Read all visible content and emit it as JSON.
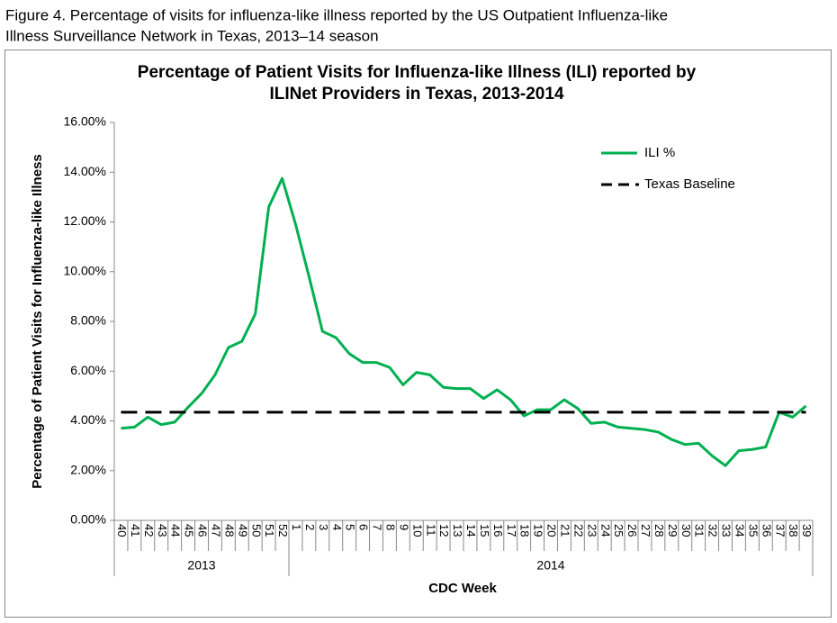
{
  "figure_caption": [
    "Figure 4.  Percentage of visits for influenza-like illness reported by the US Outpatient Influenza-like",
    "Illness Surveillance Network in Texas, 2013–14 season"
  ],
  "chart_data": {
    "type": "line",
    "title": [
      "Percentage of Patient Visits for Influenza-like Illness (ILI) reported by",
      "ILINet Providers in Texas, 2013-2014"
    ],
    "y_label": "Percentage  of Patient Visits for Influenza-like  Illness",
    "x_label": "CDC Week",
    "categories": [
      "40",
      "41",
      "42",
      "43",
      "44",
      "45",
      "46",
      "47",
      "48",
      "49",
      "50",
      "51",
      "52",
      "1",
      "2",
      "3",
      "4",
      "5",
      "6",
      "7",
      "8",
      "9",
      "10",
      "11",
      "12",
      "13",
      "14",
      "15",
      "16",
      "17",
      "18",
      "19",
      "20",
      "21",
      "22",
      "23",
      "24",
      "25",
      "26",
      "27",
      "28",
      "29",
      "30",
      "31",
      "32",
      "33",
      "34",
      "35",
      "36",
      "37",
      "38",
      "39"
    ],
    "category_groups": [
      "2013",
      "2014"
    ],
    "series": [
      {
        "name": "ILI %",
        "color": "#00b050",
        "values": [
          3.7,
          3.75,
          4.15,
          3.85,
          3.95,
          4.55,
          5.1,
          5.85,
          6.95,
          7.2,
          8.3,
          12.6,
          13.75,
          11.9,
          9.8,
          7.6,
          7.35,
          6.7,
          6.35,
          6.35,
          6.15,
          5.45,
          5.95,
          5.85,
          5.35,
          5.3,
          5.3,
          4.9,
          5.25,
          4.85,
          4.2,
          4.45,
          4.45,
          4.85,
          4.5,
          3.9,
          3.95,
          3.75,
          3.7,
          3.65,
          3.55,
          3.25,
          3.05,
          3.1,
          2.6,
          2.2,
          2.8,
          2.85,
          2.95,
          4.35,
          4.15,
          4.6
        ]
      }
    ],
    "baseline": {
      "name": "Texas Baseline",
      "value": 4.35,
      "color": "#000000"
    },
    "ylim": [
      0,
      16
    ],
    "yticks": [
      {
        "value": 0,
        "label": "0.00%"
      },
      {
        "value": 2,
        "label": "2.00%"
      },
      {
        "value": 4,
        "label": "4.00%"
      },
      {
        "value": 6,
        "label": "6.00%"
      },
      {
        "value": 8,
        "label": "8.00%"
      },
      {
        "value": 10,
        "label": "10.00%"
      },
      {
        "value": 12,
        "label": "12.00%"
      },
      {
        "value": 14,
        "label": "14.00%"
      },
      {
        "value": 16,
        "label": "16.00%"
      }
    ],
    "grid": false,
    "legend": "upper-right"
  }
}
